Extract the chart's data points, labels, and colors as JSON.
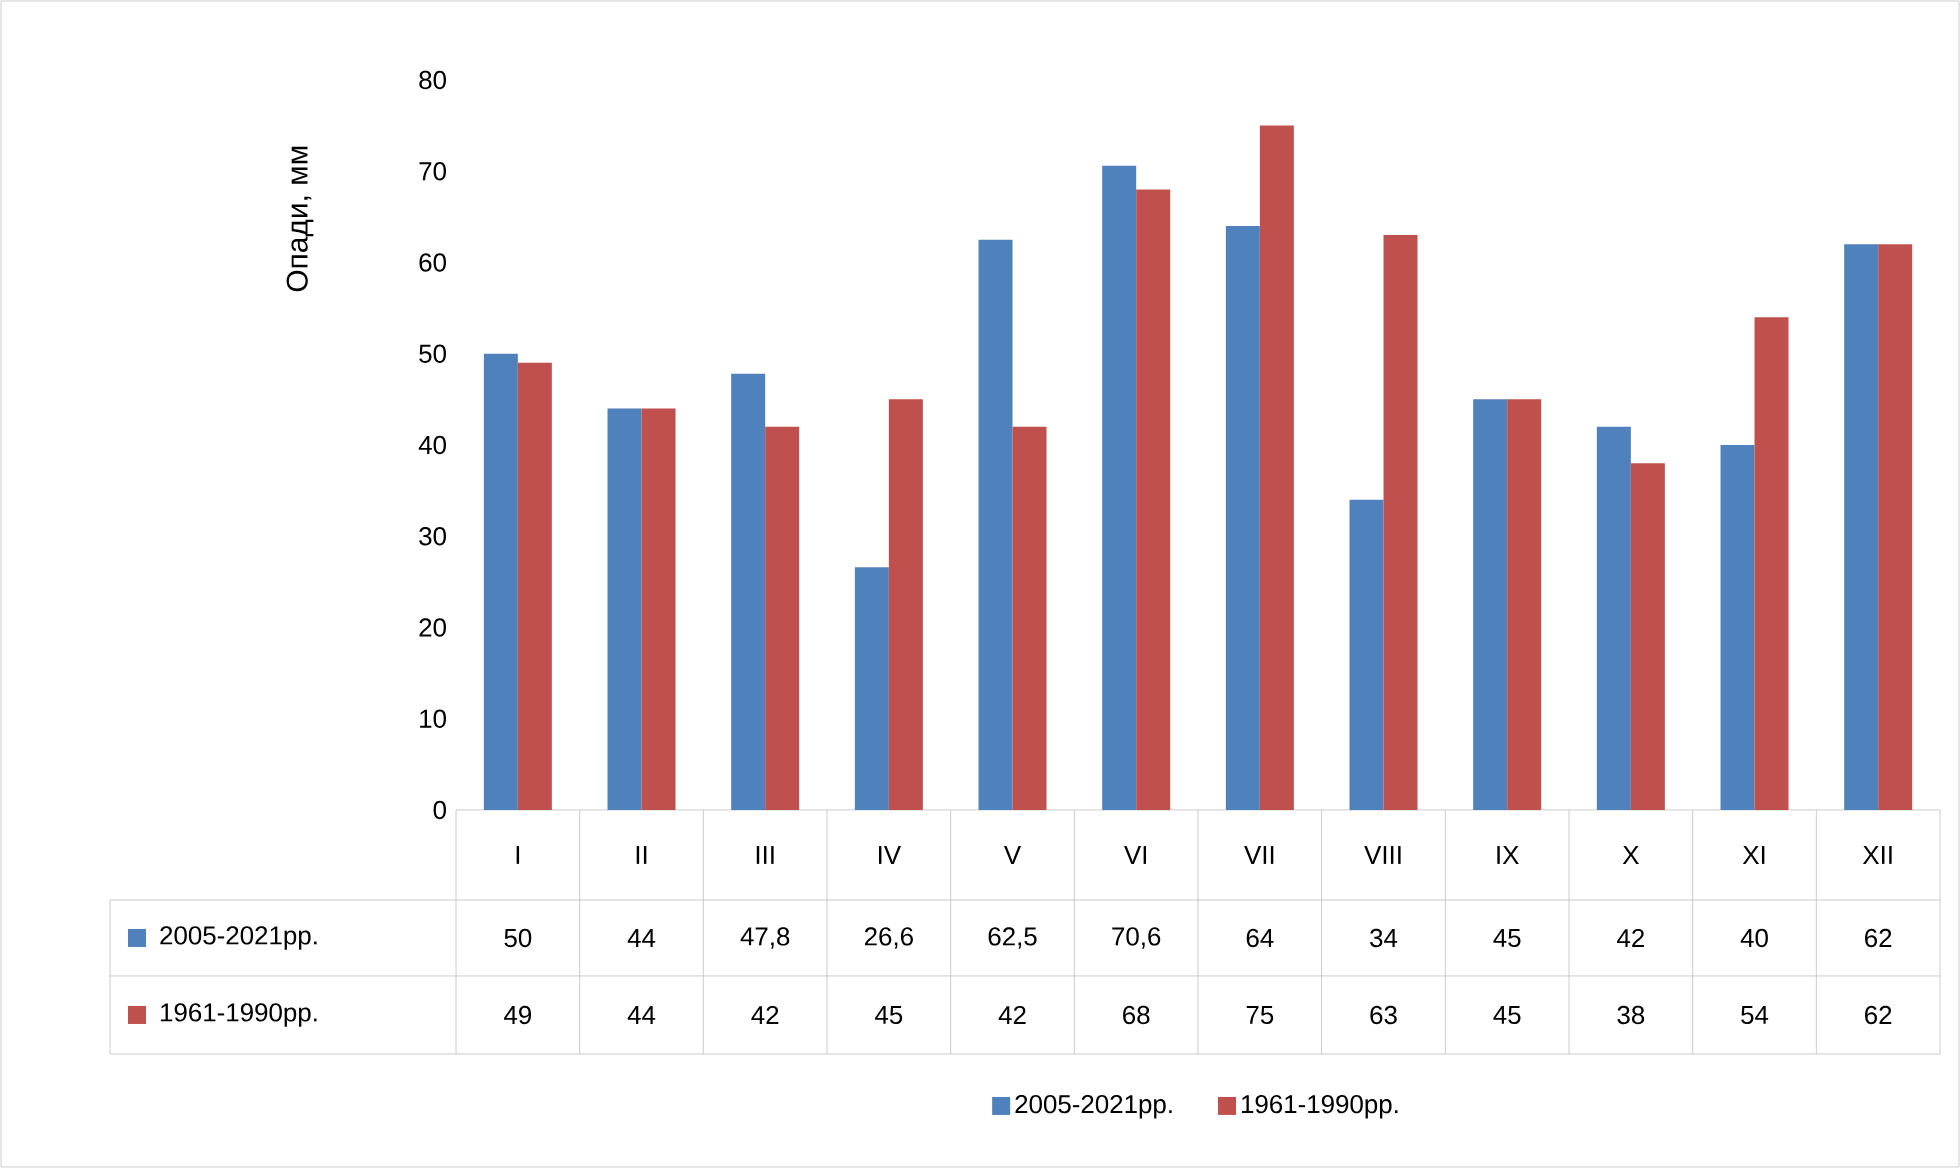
{
  "chart_data": {
    "type": "bar",
    "ylabel": "Опади, мм",
    "categories": [
      "I",
      "II",
      "III",
      "IV",
      "V",
      "VI",
      "VII",
      "VIII",
      "IX",
      "X",
      "XI",
      "XII"
    ],
    "series": [
      {
        "name": "2005-2021рр.",
        "color": "#4f81bd",
        "values": [
          50,
          44,
          47.8,
          26.6,
          62.5,
          70.6,
          64,
          34,
          45,
          42,
          40,
          62
        ],
        "value_labels": [
          "50",
          "44",
          "47,8",
          "26,6",
          "62,5",
          "70,6",
          "64",
          "34",
          "45",
          "42",
          "40",
          "62"
        ]
      },
      {
        "name": "1961-1990рр.",
        "color": "#c0504d",
        "values": [
          49,
          44,
          42,
          45,
          42,
          68,
          75,
          63,
          45,
          38,
          54,
          62
        ],
        "value_labels": [
          "49",
          "44",
          "42",
          "45",
          "42",
          "68",
          "75",
          "63",
          "45",
          "38",
          "54",
          "62"
        ]
      }
    ],
    "ylim": [
      0,
      80
    ],
    "yticks": [
      0,
      10,
      20,
      30,
      40,
      50,
      60,
      70,
      80
    ],
    "legend": "bottom"
  }
}
